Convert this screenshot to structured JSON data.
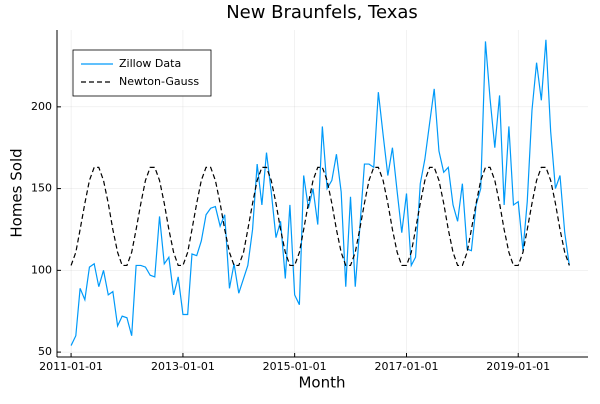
{
  "chart_data": {
    "type": "line",
    "title": "New Braunfels, Texas",
    "x_label": "Month",
    "y_label": "Homes Sold",
    "x": [
      "2011-01-01",
      "2011-02-01",
      "2011-03-01",
      "2011-04-01",
      "2011-05-01",
      "2011-06-01",
      "2011-07-01",
      "2011-08-01",
      "2011-09-01",
      "2011-10-01",
      "2011-11-01",
      "2011-12-01",
      "2012-01-01",
      "2012-02-01",
      "2012-03-01",
      "2012-04-01",
      "2012-05-01",
      "2012-06-01",
      "2012-07-01",
      "2012-08-01",
      "2012-09-01",
      "2012-10-01",
      "2012-11-01",
      "2012-12-01",
      "2013-01-01",
      "2013-02-01",
      "2013-03-01",
      "2013-04-01",
      "2013-05-01",
      "2013-06-01",
      "2013-07-01",
      "2013-08-01",
      "2013-09-01",
      "2013-10-01",
      "2013-11-01",
      "2013-12-01",
      "2014-01-01",
      "2014-02-01",
      "2014-03-01",
      "2014-04-01",
      "2014-05-01",
      "2014-06-01",
      "2014-07-01",
      "2014-08-01",
      "2014-09-01",
      "2014-10-01",
      "2014-11-01",
      "2014-12-01",
      "2015-01-01",
      "2015-02-01",
      "2015-03-01",
      "2015-04-01",
      "2015-05-01",
      "2015-06-01",
      "2015-07-01",
      "2015-08-01",
      "2015-09-01",
      "2015-10-01",
      "2015-11-01",
      "2015-12-01",
      "2016-01-01",
      "2016-02-01",
      "2016-03-01",
      "2016-04-01",
      "2016-05-01",
      "2016-06-01",
      "2016-07-01",
      "2016-08-01",
      "2016-09-01",
      "2016-10-01",
      "2016-11-01",
      "2016-12-01",
      "2017-01-01",
      "2017-02-01",
      "2017-03-01",
      "2017-04-01",
      "2017-05-01",
      "2017-06-01",
      "2017-07-01",
      "2017-08-01",
      "2017-09-01",
      "2017-10-01",
      "2017-11-01",
      "2017-12-01",
      "2018-01-01",
      "2018-02-01",
      "2018-03-01",
      "2018-04-01",
      "2018-05-01",
      "2018-06-01",
      "2018-07-01",
      "2018-08-01",
      "2018-09-01",
      "2018-10-01",
      "2018-11-01",
      "2018-12-01",
      "2019-01-01",
      "2019-02-01",
      "2019-03-01",
      "2019-04-01",
      "2019-05-01",
      "2019-06-01",
      "2019-07-01",
      "2019-08-01",
      "2019-09-01",
      "2019-10-01",
      "2019-11-01",
      "2019-12-01"
    ],
    "series": [
      {
        "name": "Zillow Data",
        "color": "#009af9",
        "dash": "solid",
        "values": [
          54,
          60,
          89,
          82,
          102,
          104,
          90,
          100,
          85,
          87,
          66,
          72,
          71,
          60,
          103,
          103,
          102,
          97,
          96,
          133,
          104,
          108,
          85,
          96,
          73,
          73,
          110,
          109,
          118,
          134,
          138,
          139,
          127,
          134,
          89,
          104,
          86,
          95,
          103,
          125,
          165,
          140,
          172,
          148,
          120,
          130,
          95,
          140,
          85,
          79,
          158,
          138,
          150,
          128,
          188,
          150,
          155,
          171,
          148,
          90,
          145,
          90,
          125,
          165,
          165,
          163,
          209,
          183,
          158,
          175,
          148,
          123,
          147,
          103,
          108,
          153,
          168,
          190,
          211,
          173,
          160,
          163,
          140,
          130,
          153,
          113,
          112,
          140,
          150,
          240,
          205,
          175,
          207,
          140,
          188,
          140,
          142,
          112,
          142,
          198,
          227,
          204,
          241,
          185,
          150,
          158,
          123,
          103
        ]
      },
      {
        "name": "Newton-Gauss",
        "color": "#000000",
        "dash": "dashed",
        "values": [
          103,
          111,
          125,
          141,
          155,
          163,
          163,
          155,
          141,
          125,
          111,
          103,
          103,
          111,
          125,
          141,
          155,
          163,
          163,
          155,
          141,
          125,
          111,
          103,
          103,
          111,
          125,
          141,
          155,
          163,
          163,
          155,
          141,
          125,
          111,
          103,
          103,
          111,
          125,
          141,
          155,
          163,
          163,
          155,
          141,
          125,
          111,
          103,
          103,
          111,
          125,
          141,
          155,
          163,
          163,
          155,
          141,
          125,
          111,
          103,
          103,
          111,
          125,
          141,
          155,
          163,
          163,
          155,
          141,
          125,
          111,
          103,
          103,
          111,
          125,
          141,
          155,
          163,
          163,
          155,
          141,
          125,
          111,
          103,
          103,
          111,
          125,
          141,
          155,
          163,
          163,
          155,
          141,
          125,
          111,
          103,
          103,
          111,
          125,
          141,
          155,
          163,
          163,
          155,
          141,
          125,
          111,
          103
        ]
      }
    ],
    "xlim": [
      "2010-10-01",
      "2020-04-01"
    ],
    "xticks": [
      "2011-01-01",
      "2013-01-01",
      "2015-01-01",
      "2017-01-01",
      "2019-01-01"
    ],
    "ylim": [
      47,
      247
    ],
    "yticks": [
      50,
      100,
      150,
      200
    ],
    "grid": true,
    "legend": "top-left"
  }
}
